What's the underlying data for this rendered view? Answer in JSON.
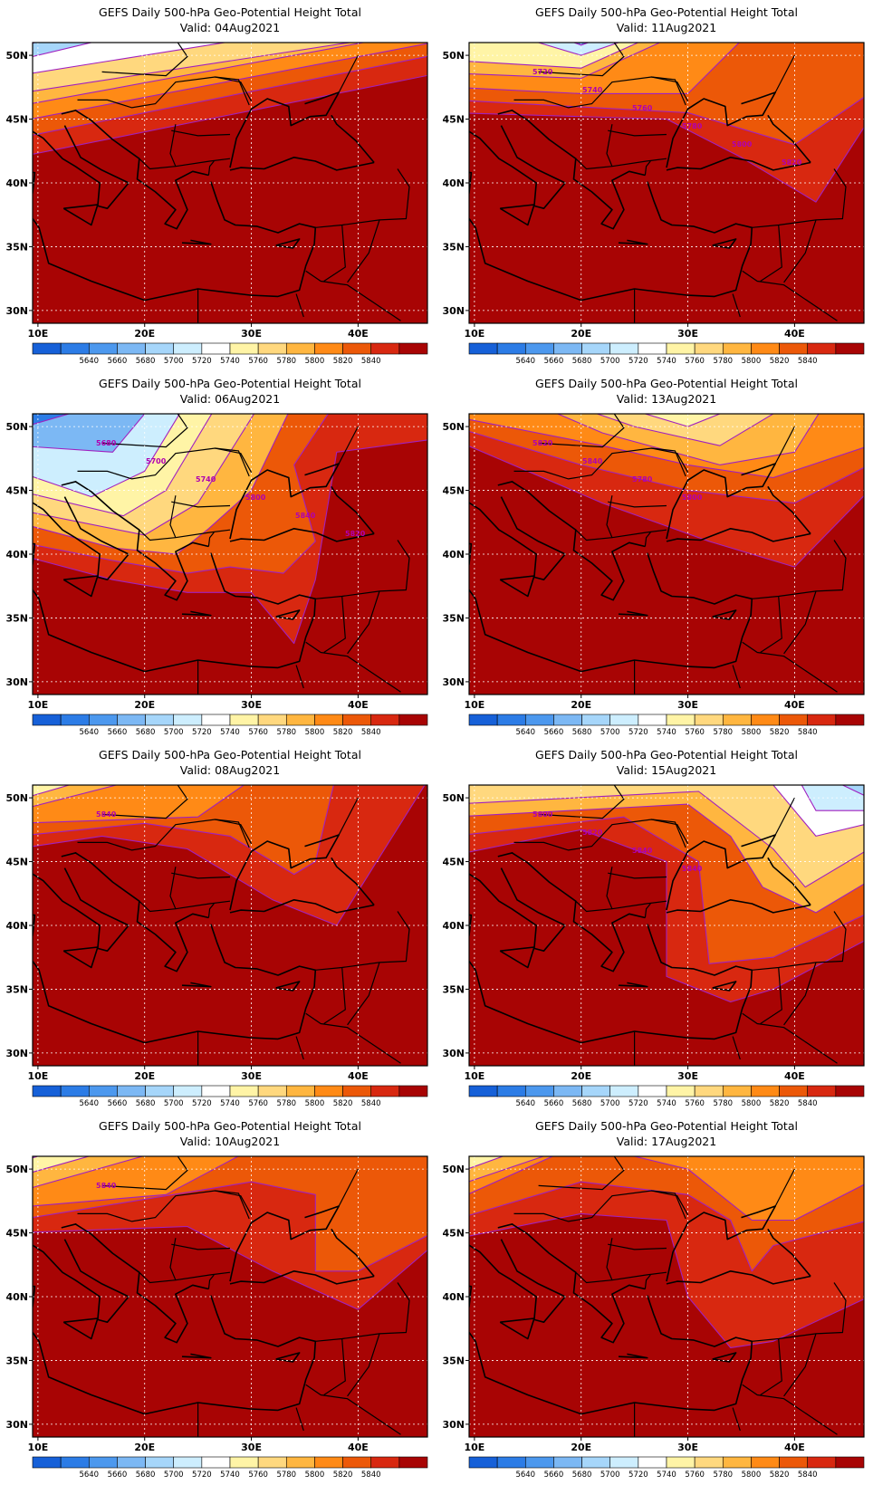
{
  "legend": {
    "colors": [
      "#1660d8",
      "#2c7ce6",
      "#4c98ee",
      "#7cb8f4",
      "#a6d6fa",
      "#cdeefe",
      "#ffffff",
      "#fff4a6",
      "#ffd87e",
      "#ffb640",
      "#ff8a16",
      "#ec5808",
      "#d82810",
      "#a80404"
    ],
    "labels": [
      "5640",
      "5660",
      "5680",
      "5700",
      "5720",
      "5740",
      "5760",
      "5780",
      "5800",
      "5820",
      "5840"
    ]
  },
  "axes": {
    "x_ticks": [
      "10E",
      "20E",
      "30E",
      "40E"
    ],
    "y_ticks": [
      "50N",
      "45N",
      "40N",
      "35N",
      "30N"
    ],
    "lon_range": [
      9.5,
      46.5
    ],
    "lat_range": [
      29,
      51
    ]
  },
  "panels": [
    {
      "title": "GEFS Daily 500-hPa Geo-Potential Height Total",
      "valid": "Valid: 04Aug2021",
      "scenario": "a",
      "contour_labels": []
    },
    {
      "title": "GEFS Daily 500-hPa Geo-Potential Height Total",
      "valid": "Valid: 11Aug2021",
      "scenario": "b",
      "contour_labels": [
        "5720",
        "5740",
        "5760",
        "5780",
        "5800",
        "5820"
      ]
    },
    {
      "title": "GEFS Daily 500-hPa Geo-Potential Height Total",
      "valid": "Valid: 06Aug2021",
      "scenario": "c",
      "contour_labels": [
        "5680",
        "5700",
        "5740",
        "5800",
        "5840",
        "5820"
      ]
    },
    {
      "title": "GEFS Daily 500-hPa Geo-Potential Height Total",
      "valid": "Valid: 13Aug2021",
      "scenario": "d",
      "contour_labels": [
        "5820",
        "5840",
        "5780",
        "5800"
      ]
    },
    {
      "title": "GEFS Daily 500-hPa Geo-Potential Height Total",
      "valid": "Valid: 08Aug2021",
      "scenario": "e",
      "contour_labels": [
        "5840"
      ]
    },
    {
      "title": "GEFS Daily 500-hPa Geo-Potential Height Total",
      "valid": "Valid: 15Aug2021",
      "scenario": "f",
      "contour_labels": [
        "5800",
        "5820",
        "5840",
        "5840"
      ]
    },
    {
      "title": "GEFS Daily 500-hPa Geo-Potential Height Total",
      "valid": "Valid: 10Aug2021",
      "scenario": "g",
      "contour_labels": [
        "5840"
      ]
    },
    {
      "title": "GEFS Daily 500-hPa Geo-Potential Height Total",
      "valid": "Valid: 17Aug2021",
      "scenario": "h",
      "contour_labels": []
    }
  ]
}
